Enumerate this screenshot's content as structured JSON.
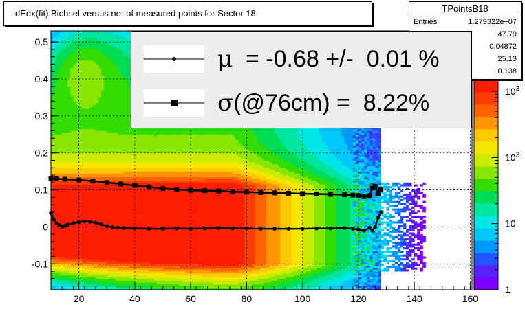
{
  "title": "dEdx(fit) Bichsel versus no. of measured points for Sector 18",
  "stats": {
    "name": "TPointsB18",
    "rows": [
      {
        "key": "Entries",
        "value": "1.279322e+07"
      },
      {
        "key": "",
        "value": "47.79"
      },
      {
        "key": "",
        "value": "0.04872"
      },
      {
        "key": "",
        "value": "25.13"
      },
      {
        "key": "",
        "value": "0.138"
      }
    ]
  },
  "legend": {
    "entries": [
      {
        "symbol": "μ",
        "text": "  = -0.68 +/-  0.01 %",
        "marker": "circle"
      },
      {
        "symbol": "σ",
        "text": "(@76cm) =  8.22%",
        "marker": "square"
      }
    ]
  },
  "chart_data": {
    "type": "heatmap",
    "title": "dEdx(fit) Bichsel versus no. of measured points for Sector 18",
    "xlabel": "",
    "ylabel": "",
    "xlim": [
      10,
      170
    ],
    "ylim": [
      -0.17,
      0.53
    ],
    "x_ticks": [
      "20",
      "40",
      "60",
      "80",
      "100",
      "120",
      "140",
      "160"
    ],
    "y_ticks": [
      "-0.1",
      "0",
      "0.1",
      "0.2",
      "0.3",
      "0.4",
      "0.5"
    ],
    "z_scale": "log",
    "zlim": [
      1,
      1500
    ],
    "z_ticks": [
      "1",
      "10",
      "10^2",
      "10^3"
    ],
    "palette": [
      "#7a00ff",
      "#5a20ff",
      "#2255ff",
      "#0099ff",
      "#00c8ff",
      "#00e6e6",
      "#00e6a0",
      "#00dd55",
      "#33dd00",
      "#88e600",
      "#cceb00",
      "#f5e600",
      "#ffc800",
      "#ff9600",
      "#ff6400",
      "#ff3c00",
      "#ff1e00"
    ],
    "grid": true,
    "series": [
      {
        "name": "μ",
        "marker": "circle",
        "x": [
          10,
          11,
          12,
          13,
          14,
          15,
          16,
          18,
          20,
          22,
          24,
          26,
          28,
          30,
          32,
          34,
          36,
          40,
          45,
          50,
          55,
          60,
          65,
          70,
          75,
          80,
          85,
          90,
          95,
          100,
          105,
          110,
          115,
          118,
          120,
          122,
          124,
          125,
          126,
          127,
          128
        ],
        "y": [
          0.037,
          0.02,
          0.01,
          0.005,
          0.0,
          0.003,
          0.006,
          0.01,
          0.013,
          0.015,
          0.014,
          0.011,
          0.007,
          0.002,
          -0.001,
          -0.002,
          -0.003,
          -0.004,
          -0.005,
          -0.005,
          -0.004,
          -0.005,
          -0.004,
          -0.003,
          -0.004,
          -0.004,
          -0.005,
          -0.005,
          -0.005,
          -0.005,
          -0.004,
          -0.004,
          -0.003,
          -0.005,
          -0.007,
          -0.01,
          -0.002,
          -0.01,
          0.0,
          0.025,
          0.04
        ]
      },
      {
        "name": "σ",
        "marker": "square",
        "x": [
          10,
          12,
          15,
          20,
          25,
          30,
          35,
          40,
          45,
          50,
          55,
          60,
          65,
          70,
          75,
          80,
          85,
          90,
          95,
          100,
          105,
          110,
          115,
          118,
          120,
          122,
          124,
          125,
          126,
          127,
          128
        ],
        "y": [
          0.13,
          0.13,
          0.129,
          0.127,
          0.124,
          0.12,
          0.116,
          0.112,
          0.108,
          0.104,
          0.101,
          0.099,
          0.098,
          0.097,
          0.095,
          0.094,
          0.093,
          0.092,
          0.091,
          0.09,
          0.089,
          0.088,
          0.087,
          0.086,
          0.085,
          0.082,
          0.085,
          0.105,
          0.11,
          0.09,
          0.1
        ]
      }
    ]
  }
}
